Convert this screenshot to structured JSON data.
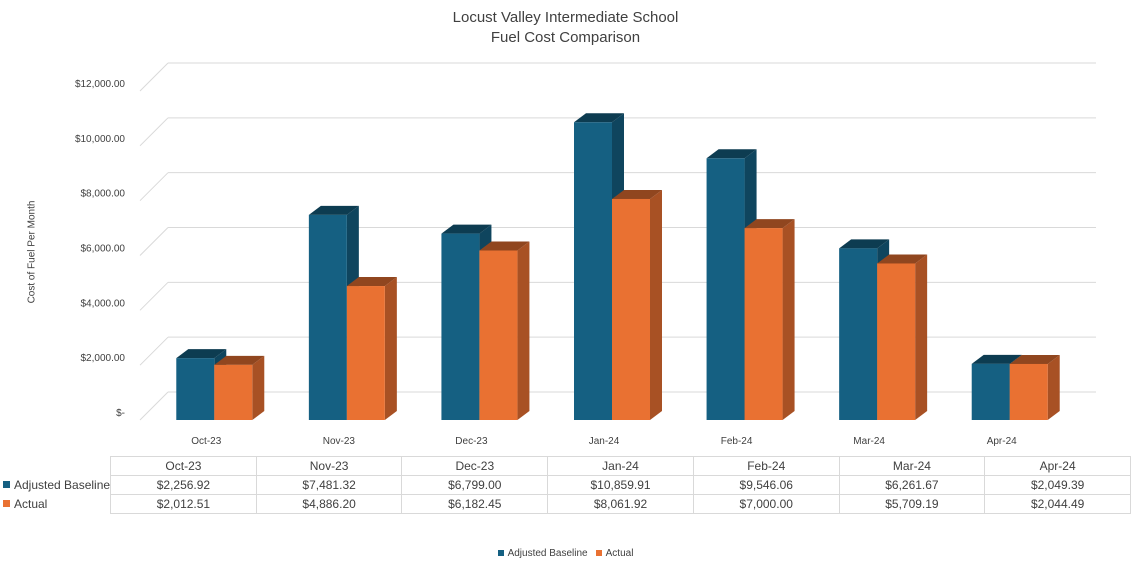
{
  "chart_data": {
    "type": "bar",
    "title": [
      "Locust Valley  Intermediate School",
      "Fuel Cost Comparison"
    ],
    "ylabel": "Cost of Fuel Per Month",
    "xlabel": "",
    "categories": [
      "Oct-23",
      "Nov-23",
      "Dec-23",
      "Jan-24",
      "Feb-24",
      "Mar-24",
      "Apr-24"
    ],
    "ylim": [
      0,
      12000
    ],
    "yticks": [
      {
        "value": 0,
        "label": "$-"
      },
      {
        "value": 2000,
        "label": "$2,000.00"
      },
      {
        "value": 4000,
        "label": "$4,000.00"
      },
      {
        "value": 6000,
        "label": "$6,000.00"
      },
      {
        "value": 8000,
        "label": "$8,000.00"
      },
      {
        "value": 10000,
        "label": "$10,000.00"
      },
      {
        "value": 12000,
        "label": "$12,000.00"
      }
    ],
    "grid": true,
    "legend_position": "bottom",
    "series": [
      {
        "name": "Adjusted Baseline",
        "color": "#156082",
        "values": [
          2256.92,
          7481.32,
          6799.0,
          10859.91,
          9546.06,
          6261.67,
          2049.39
        ],
        "labels": [
          "$2,256.92",
          "$7,481.32",
          "$6,799.00",
          "$10,859.91",
          "$9,546.06",
          "$6,261.67",
          "$2,049.39"
        ]
      },
      {
        "name": "Actual",
        "color": "#E97132",
        "values": [
          2012.51,
          4886.2,
          6182.45,
          8061.92,
          7000.0,
          5709.19,
          2044.49
        ],
        "labels": [
          "$2,012.51",
          "$4,886.20",
          "$6,182.45",
          "$8,061.92",
          "$7,000.00",
          "$5,709.19",
          "$2,044.49"
        ]
      }
    ]
  }
}
